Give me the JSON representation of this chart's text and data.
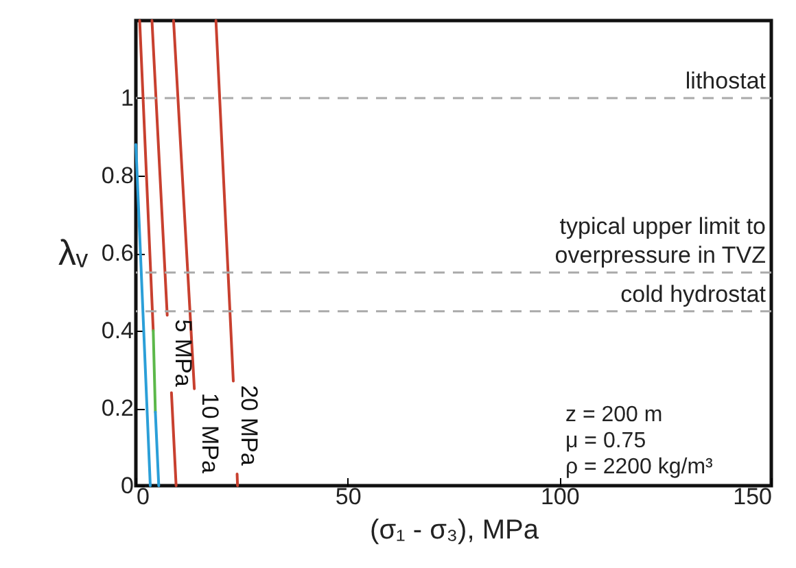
{
  "chart_data": {
    "type": "line",
    "xlabel": "(σ₁ - σ₃), MPa",
    "ylabel": "λᵥ",
    "xlim": [
      0,
      150
    ],
    "xticks": [
      0,
      50,
      100,
      150
    ],
    "ylim": [
      0,
      1.2
    ],
    "yticks": [
      0,
      0.2,
      0.4,
      0.6,
      0.8,
      1
    ],
    "grid": false,
    "marker": "none",
    "line_style": "solid",
    "series": [
      {
        "color": "#2b9fd8",
        "x": [
          0,
          3.4
        ],
        "values": [
          0.88,
          0
        ]
      },
      {
        "color": "#c8402f",
        "x": [
          0.9,
          4.1
        ],
        "values": [
          1.2,
          0.4
        ]
      },
      {
        "color": "#5cb84a",
        "x": [
          4.1,
          4.6
        ],
        "values": [
          0.4,
          0.19
        ]
      },
      {
        "color": "#2b9fd8",
        "x": [
          4.6,
          5.4
        ],
        "values": [
          0.19,
          0
        ]
      },
      {
        "name": "5 MPa",
        "color": "#c8402f",
        "x": [
          3.8,
          7.4,
          null,
          8.4,
          9.5
        ],
        "values": [
          1.2,
          0.44,
          null,
          0.24,
          0
        ]
      },
      {
        "name": "10 MPa",
        "color": "#c8402f",
        "x": [
          8.9,
          13.8
        ],
        "values": [
          1.2,
          0.25
        ]
      },
      {
        "name": "20 MPa",
        "color": "#c8402f",
        "x": [
          18.9,
          23.0,
          null,
          23.9,
          24.0
        ],
        "values": [
          1.2,
          0.27,
          null,
          0.03,
          0
        ]
      }
    ],
    "ref_lines": [
      {
        "axis": "y",
        "value": 1,
        "label": "lithostat",
        "color": "#aaaaaa",
        "line_style": "dashed"
      },
      {
        "axis": "y",
        "value": 0.55,
        "label": "typical upper limit to\noverpressure in TVZ",
        "color": "#aaaaaa",
        "line_style": "dashed"
      },
      {
        "axis": "y",
        "value": 0.45,
        "label": "cold hydrostat",
        "color": "#aaaaaa",
        "line_style": "dashed"
      }
    ],
    "annotations": [
      "z = 200 m",
      "μ = 0.75",
      "ρ = 2200 kg/m³"
    ]
  }
}
